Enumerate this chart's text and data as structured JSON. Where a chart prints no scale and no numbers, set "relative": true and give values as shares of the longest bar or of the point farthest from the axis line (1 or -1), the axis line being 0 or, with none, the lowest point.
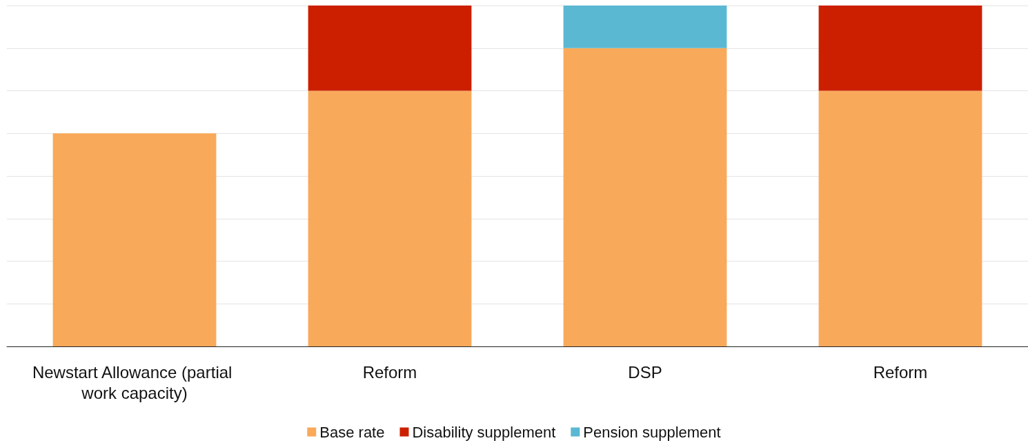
{
  "chart_data": {
    "type": "bar",
    "relative": true,
    "stacked": true,
    "grid": "y",
    "legend": "bottom",
    "categories": [
      "Newstart Allowance (partial work capacity)",
      "Reform",
      "DSP",
      "Reform"
    ],
    "series": [
      {
        "name": "Base rate",
        "color": "#f9a95a",
        "values": [
          0.625,
          0.75,
          0.875,
          0.75
        ]
      },
      {
        "name": "Disability supplement",
        "color": "#cc1f00",
        "values": [
          null,
          0.25,
          null,
          0.25
        ]
      },
      {
        "name": "Pension supplement",
        "color": "#5bb8d2",
        "values": [
          null,
          null,
          0.125,
          null
        ]
      }
    ]
  }
}
